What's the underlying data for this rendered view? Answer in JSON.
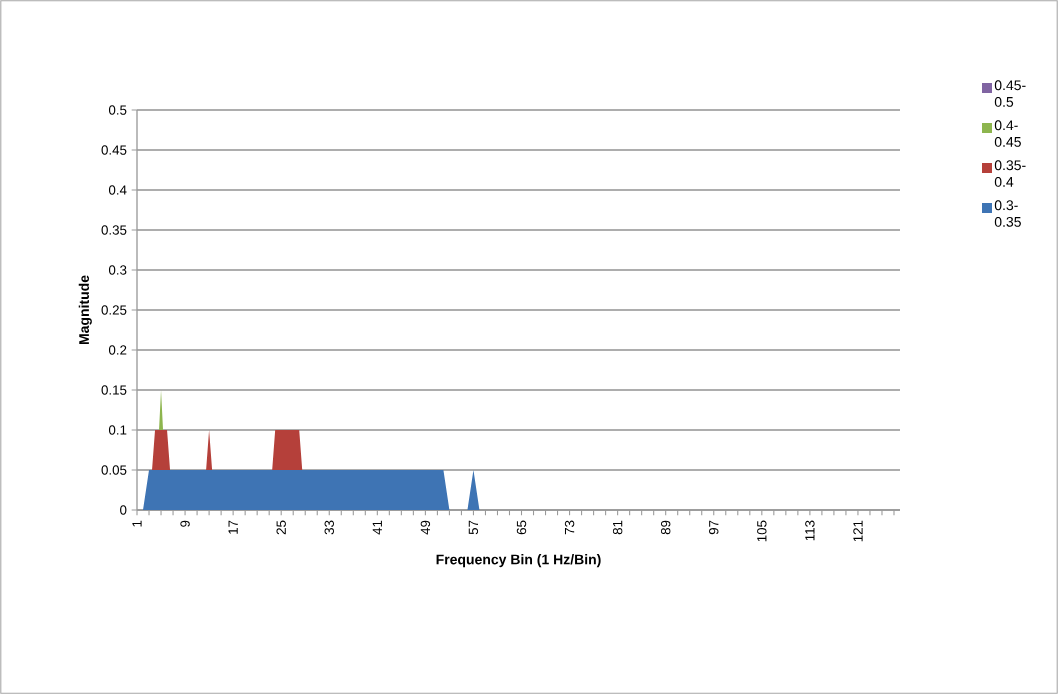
{
  "chart_data": {
    "type": "area",
    "xlabel": "Frequency Bin (1 Hz/Bin)",
    "ylabel": "Magnitude",
    "categories": [
      "1",
      null,
      null,
      null,
      null,
      null,
      null,
      null,
      "9",
      null,
      null,
      null,
      null,
      null,
      null,
      null,
      "17",
      null,
      null,
      null,
      null,
      null,
      null,
      null,
      "25",
      null,
      null,
      null,
      null,
      null,
      null,
      null,
      "33",
      null,
      null,
      null,
      null,
      null,
      null,
      null,
      "41",
      null,
      null,
      null,
      null,
      null,
      null,
      null,
      "49",
      null,
      null,
      null,
      null,
      null,
      null,
      null,
      "57",
      null,
      null,
      null,
      null,
      null,
      null,
      null,
      "65",
      null,
      null,
      null,
      null,
      null,
      null,
      null,
      "73",
      null,
      null,
      null,
      null,
      null,
      null,
      null,
      "81",
      null,
      null,
      null,
      null,
      null,
      null,
      null,
      "89",
      null,
      null,
      null,
      null,
      null,
      null,
      null,
      "97",
      null,
      null,
      null,
      null,
      null,
      null,
      null,
      "105",
      null,
      null,
      null,
      null,
      null,
      null,
      null,
      "113",
      null,
      null,
      null,
      null,
      null,
      null,
      null,
      "121",
      null,
      null,
      null,
      null,
      null,
      null,
      null
    ],
    "series": [
      {
        "name": "0.45-0.5",
        "color": "#8064a2",
        "values": [
          null,
          null,
          null,
          null,
          null,
          null,
          null,
          null,
          null,
          null,
          null,
          null,
          null,
          null,
          null,
          null,
          null,
          null,
          null,
          null,
          null,
          null,
          null,
          null,
          null,
          null,
          null,
          null,
          null,
          null,
          null,
          null,
          null,
          null,
          null,
          null,
          null,
          null,
          null,
          null,
          null,
          null,
          null,
          null,
          null,
          null,
          null,
          null,
          null,
          null,
          null,
          null,
          null,
          null,
          null,
          null,
          null,
          null,
          null,
          null,
          null,
          null,
          null,
          null,
          null,
          null,
          null,
          null,
          null,
          null,
          null,
          null,
          null,
          null,
          null,
          null,
          null,
          null,
          null,
          null,
          null,
          null,
          null,
          null,
          null,
          null,
          null,
          null,
          null,
          null,
          null,
          null,
          null,
          null,
          null,
          null,
          null,
          null,
          null,
          null,
          null,
          null,
          null,
          null,
          null,
          null,
          null,
          null,
          null,
          null,
          null,
          null,
          null,
          null,
          null,
          null,
          null,
          null,
          null,
          null,
          null,
          null,
          null,
          null,
          null,
          null,
          null,
          null
        ]
      },
      {
        "name": "0.4-0.45",
        "color": "#8db54e",
        "values": [
          0,
          0,
          0,
          0,
          0.15,
          0,
          0,
          0,
          0,
          0,
          0,
          0,
          0,
          0,
          0,
          0,
          0,
          0,
          0,
          0,
          0,
          0,
          0,
          0,
          0,
          0,
          0,
          0,
          0,
          0,
          0,
          0,
          0,
          0,
          0,
          0,
          0,
          0,
          0,
          0,
          0,
          0,
          0,
          0,
          0,
          0,
          0,
          0,
          0,
          0,
          0,
          0,
          0,
          0,
          0,
          0,
          0,
          0,
          0,
          0,
          0,
          0,
          0,
          0,
          0,
          0,
          0,
          0,
          0,
          0,
          0,
          0,
          0,
          0,
          0,
          0,
          0,
          0,
          0,
          0,
          0,
          0,
          0,
          0,
          0,
          0,
          0,
          0,
          0,
          0,
          0,
          0,
          0,
          0,
          0,
          0,
          0,
          0,
          0,
          0,
          0,
          0,
          0,
          0,
          0,
          0,
          0,
          0,
          0,
          0,
          0,
          0,
          0,
          0,
          0,
          0,
          0,
          0,
          0,
          0,
          0,
          0,
          0,
          0,
          0,
          0,
          0,
          0
        ]
      },
      {
        "name": "0.35-0.4",
        "color": "#b5403a",
        "values": [
          0,
          0,
          0,
          0.1,
          0.1,
          0.1,
          0,
          0,
          0,
          0,
          0,
          0,
          0.1,
          0,
          0,
          0,
          0,
          0,
          0,
          0,
          0,
          0,
          0,
          0.1,
          0.1,
          0.1,
          0.1,
          0.1,
          0,
          0,
          0,
          0,
          0,
          0,
          0,
          0,
          0,
          0,
          0,
          0,
          0,
          0,
          0,
          0,
          0,
          0,
          0,
          0,
          0,
          0,
          0,
          0,
          0,
          0,
          0,
          0,
          0,
          0,
          0,
          0,
          0,
          0,
          0,
          0,
          0,
          0,
          0,
          0,
          0,
          0,
          0,
          0,
          0,
          0,
          0,
          0,
          0,
          0,
          0,
          0,
          0,
          0,
          0,
          0,
          0,
          0,
          0,
          0,
          0,
          0,
          0,
          0,
          0,
          0,
          0,
          0,
          0,
          0,
          0,
          0,
          0,
          0,
          0,
          0,
          0,
          0,
          0,
          0,
          0,
          0,
          0,
          0,
          0,
          0,
          0,
          0,
          0,
          0,
          0,
          0,
          0,
          0,
          0,
          0,
          0,
          0,
          0,
          0
        ]
      },
      {
        "name": "0.3-0.35",
        "color": "#3e74b4",
        "values": [
          0,
          0,
          0.05,
          0.05,
          0.05,
          0.05,
          0.05,
          0.05,
          0.05,
          0.05,
          0.05,
          0.05,
          0.05,
          0.05,
          0.05,
          0.05,
          0.05,
          0.05,
          0.05,
          0.05,
          0.05,
          0.05,
          0.05,
          0.05,
          0.05,
          0.05,
          0.05,
          0.05,
          0.05,
          0.05,
          0.05,
          0.05,
          0.05,
          0.05,
          0.05,
          0.05,
          0.05,
          0.05,
          0.05,
          0.05,
          0.05,
          0.05,
          0.05,
          0.05,
          0.05,
          0.05,
          0.05,
          0.05,
          0.05,
          0.05,
          0.05,
          0.05,
          0,
          0,
          0,
          0,
          0.05,
          0,
          0,
          0,
          0,
          0,
          0,
          0,
          0,
          0,
          0,
          0,
          0,
          0,
          0,
          0,
          0,
          0,
          0,
          0,
          0,
          0,
          0,
          0,
          0,
          0,
          0,
          0,
          0,
          0,
          0,
          0,
          0,
          0,
          0,
          0,
          0,
          0,
          0,
          0,
          0,
          0,
          0,
          0,
          0,
          0,
          0,
          0,
          0,
          0,
          0,
          0,
          0,
          0,
          0,
          0,
          0,
          0,
          0,
          0,
          0,
          0,
          0,
          0,
          0,
          0,
          0,
          0,
          0,
          0,
          0,
          0
        ]
      }
    ],
    "ylim": [
      0,
      0.5
    ],
    "yticks": [
      0,
      0.05,
      0.1,
      0.15,
      0.2,
      0.25,
      0.3,
      0.35,
      0.4,
      0.45,
      0.5
    ],
    "grid": "y",
    "legend": "right"
  }
}
